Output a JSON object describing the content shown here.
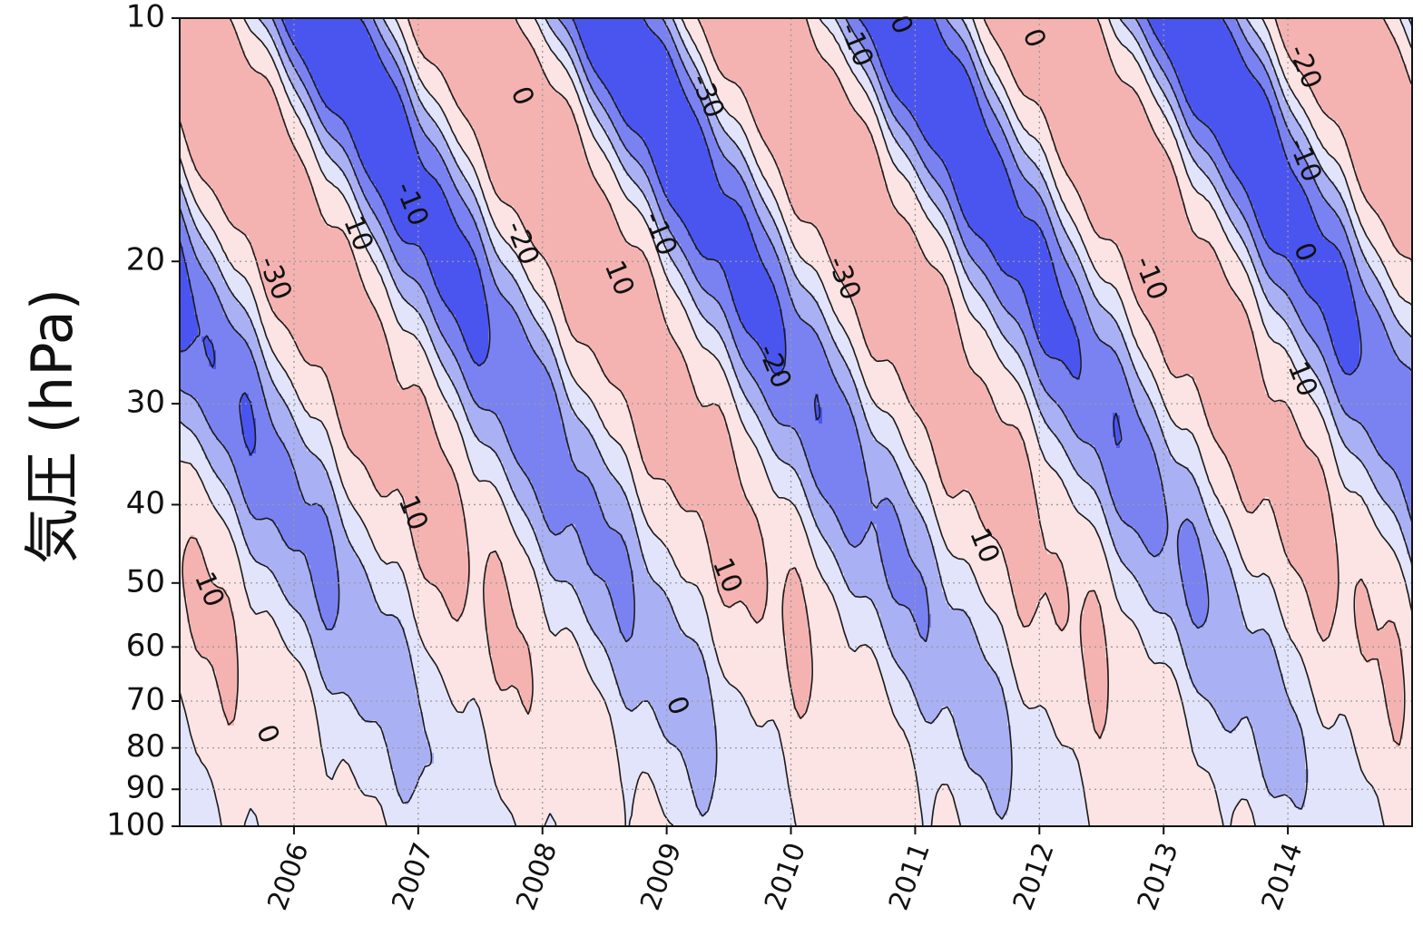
{
  "chart_data": {
    "type": "heatmap",
    "subtype": "filled-contour (time–pressure cross section)",
    "title": "",
    "xlabel": "",
    "ylabel": "気圧 (hPa)",
    "x_tick_labels": [
      "2006",
      "2007",
      "2008",
      "2009",
      "2010",
      "2011",
      "2012",
      "2013",
      "2014"
    ],
    "x_ticks": [
      2006.0,
      2007.0,
      2008.0,
      2009.0,
      2010.0,
      2011.0,
      2012.0,
      2013.0,
      2014.0
    ],
    "xlim": [
      2005.08,
      2015.0
    ],
    "y_tick_labels": [
      "10",
      "20",
      "30",
      "40",
      "50",
      "60",
      "70",
      "80",
      "90",
      "100"
    ],
    "y_ticks": [
      10,
      20,
      30,
      40,
      50,
      60,
      70,
      80,
      90,
      100
    ],
    "ylim": [
      100,
      10
    ],
    "y_scale": "log",
    "y_inverted": true,
    "grid": true,
    "grid_style": "dotted gray",
    "contour_levels": [
      -30,
      -20,
      -10,
      0,
      10
    ],
    "fill_colors": {
      "below_-30": "#4a55f0",
      "-30_to_-20": "#7a82f2",
      "-20_to_-10": "#aab0f4",
      "-10_to_0": "#e2e4fb",
      "0_to_10": "#fbe4e3",
      "above_10": "#f4b3b1"
    },
    "contour_labels": [
      {
        "text": "-30",
        "x": 2005.84,
        "y": 21
      },
      {
        "text": "-30",
        "x": 2009.32,
        "y": 12.5
      },
      {
        "text": "-30",
        "x": 2010.42,
        "y": 21
      },
      {
        "text": "-20",
        "x": 2007.83,
        "y": 19
      },
      {
        "text": "-20",
        "x": 2009.86,
        "y": 27
      },
      {
        "text": "-20",
        "x": 2014.13,
        "y": 11.5
      },
      {
        "text": "-10",
        "x": 2006.94,
        "y": 17
      },
      {
        "text": "-10",
        "x": 2008.94,
        "y": 18.5
      },
      {
        "text": "-10",
        "x": 2010.52,
        "y": 10.8
      },
      {
        "text": "-10",
        "x": 2012.89,
        "y": 21
      },
      {
        "text": "-10",
        "x": 2014.13,
        "y": 15
      },
      {
        "text": "0",
        "x": 2007.83,
        "y": 12.5
      },
      {
        "text": "0",
        "x": 2010.88,
        "y": 10.2
      },
      {
        "text": "0",
        "x": 2011.95,
        "y": 10.6
      },
      {
        "text": "0",
        "x": 2014.13,
        "y": 19.5
      },
      {
        "text": "0",
        "x": 2005.78,
        "y": 77
      },
      {
        "text": "0",
        "x": 2009.08,
        "y": 71
      },
      {
        "text": "10",
        "x": 2006.51,
        "y": 18.5
      },
      {
        "text": "10",
        "x": 2008.61,
        "y": 21
      },
      {
        "text": "10",
        "x": 2006.95,
        "y": 41
      },
      {
        "text": "10",
        "x": 2009.48,
        "y": 49
      },
      {
        "text": "10",
        "x": 2005.31,
        "y": 51
      },
      {
        "text": "10",
        "x": 2011.55,
        "y": 45
      },
      {
        "text": "10",
        "x": 2014.11,
        "y": 28
      }
    ],
    "description": "Alternating downward-propagating bands of negative (blue) and positive (red) values in the 10–100 hPa layer, repeating about every 2.3 years (quasi-biennial oscillation pattern)."
  }
}
